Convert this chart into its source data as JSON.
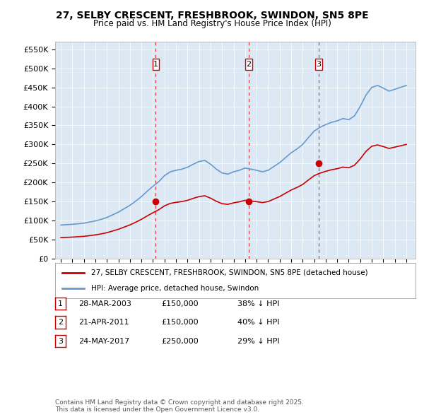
{
  "title1": "27, SELBY CRESCENT, FRESHBROOK, SWINDON, SN5 8PE",
  "title2": "Price paid vs. HM Land Registry's House Price Index (HPI)",
  "background_color": "#dce9f5",
  "plot_bg_color": "#dce9f5",
  "ylabel_ticks": [
    "£0",
    "£50K",
    "£100K",
    "£150K",
    "£200K",
    "£250K",
    "£300K",
    "£350K",
    "£400K",
    "£450K",
    "£500K",
    "£550K"
  ],
  "ytick_values": [
    0,
    50000,
    100000,
    150000,
    200000,
    250000,
    300000,
    350000,
    400000,
    450000,
    500000,
    550000
  ],
  "ylim": [
    0,
    570000
  ],
  "sale_dates_num": [
    2003.24,
    2011.31,
    2017.4
  ],
  "sale_prices": [
    150000,
    150000,
    250000
  ],
  "sale_labels": [
    "1",
    "2",
    "3"
  ],
  "legend_house": "27, SELBY CRESCENT, FRESHBROOK, SWINDON, SN5 8PE (detached house)",
  "legend_hpi": "HPI: Average price, detached house, Swindon",
  "table_entries": [
    {
      "num": "1",
      "date": "28-MAR-2003",
      "price": "£150,000",
      "pct": "38% ↓ HPI"
    },
    {
      "num": "2",
      "date": "21-APR-2011",
      "price": "£150,000",
      "pct": "40% ↓ HPI"
    },
    {
      "num": "3",
      "date": "24-MAY-2017",
      "price": "£250,000",
      "pct": "29% ↓ HPI"
    }
  ],
  "footnote": "Contains HM Land Registry data © Crown copyright and database right 2025.\nThis data is licensed under the Open Government Licence v3.0.",
  "house_line_color": "#cc0000",
  "hpi_line_color": "#6699cc",
  "vline_color": "#cc0000",
  "xstart": 1995,
  "xend": 2026
}
